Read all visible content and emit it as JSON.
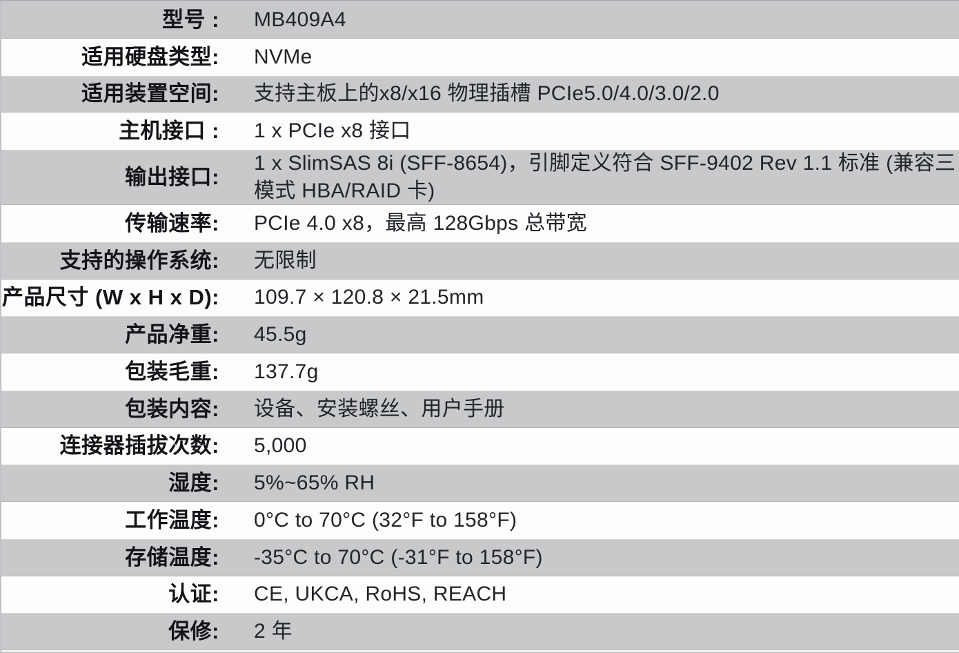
{
  "colors": {
    "row_gray": "#c8c9cb",
    "row_white": "#fdfdfd",
    "label_text": "#121417",
    "value_text": "#212428",
    "gray_row_edge": "#b4b6b9",
    "outer_top_border": "#abadb0",
    "outer_left_border": "#c0c2c5"
  },
  "spec_table": {
    "rows": [
      {
        "label": "型号 :",
        "value": "MB409A4"
      },
      {
        "label": "适用硬盘类型:",
        "value": "NVMe"
      },
      {
        "label": "适用装置空间:",
        "value": "支持主板上的x8/x16 物理插槽 PCIe5.0/4.0/3.0/2.0"
      },
      {
        "label": "主机接口 :",
        "value": "1 x PCIe x8 接口"
      },
      {
        "label": "输出接口:",
        "value": "1 x SlimSAS 8i (SFF-8654)，引脚定义符合 SFF-9402 Rev 1.1 标准 (兼容三\n模式 HBA/RAID 卡)"
      },
      {
        "label": "传输速率:",
        "value": "PCIe 4.0 x8，最高 128Gbps 总带宽"
      },
      {
        "label": "支持的操作系统:",
        "value": "无限制"
      },
      {
        "label": "产品尺寸 (W x H x D):",
        "value": "109.7 × 120.8 × 21.5mm"
      },
      {
        "label": "产品净重:",
        "value": "45.5g"
      },
      {
        "label": "包装毛重:",
        "value": "137.7g"
      },
      {
        "label": "包装内容:",
        "value": "设备、安装螺丝、用户手册"
      },
      {
        "label": "连接器插拔次数:",
        "value": "5,000"
      },
      {
        "label": "湿度:",
        "value": "5%~65% RH"
      },
      {
        "label": "工作温度:",
        "value": "0°C to 70°C (32°F to 158°F)"
      },
      {
        "label": "存储温度:",
        "value": "-35°C to 70°C (-31°F to 158°F)"
      },
      {
        "label": "认证:",
        "value": "CE, UKCA, RoHS, REACH"
      },
      {
        "label": "保修:",
        "value": "2 年"
      }
    ]
  }
}
